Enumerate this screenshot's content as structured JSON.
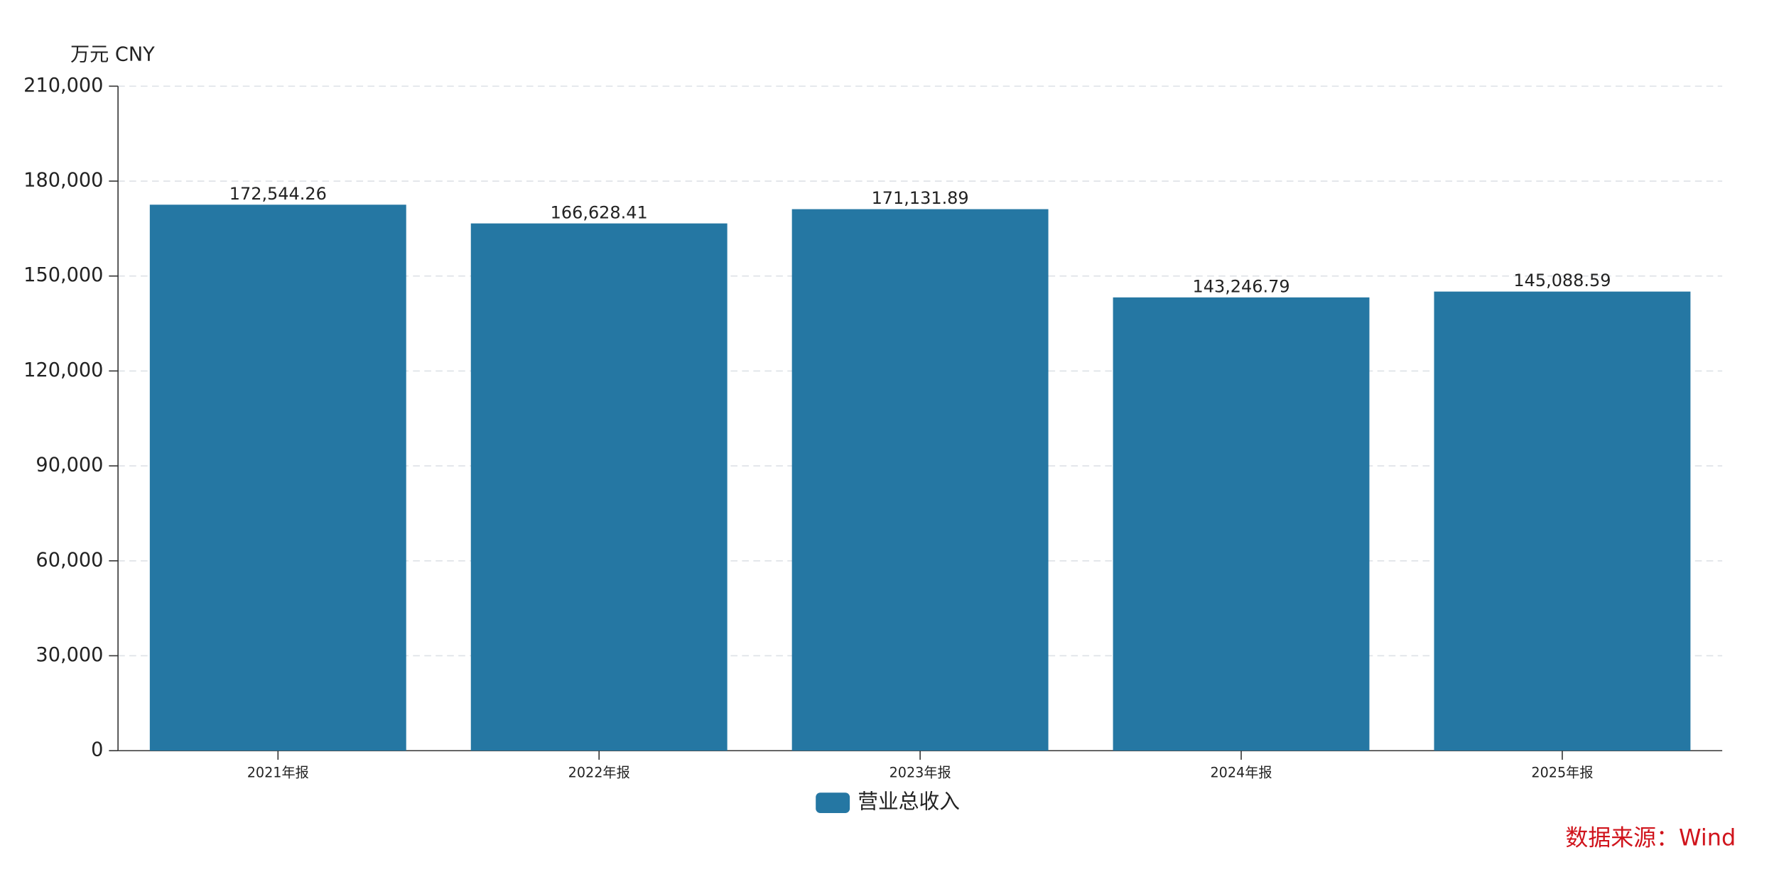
{
  "chart_data": {
    "type": "bar",
    "unit_label": "万元  CNY",
    "categories": [
      "2021年报",
      "2022年报",
      "2023年报",
      "2024年报",
      "2025年报"
    ],
    "series": [
      {
        "name": "营业总收入",
        "color": "#2577a3",
        "values": [
          172544.26,
          166628.41,
          171131.89,
          143246.79,
          145088.59
        ],
        "value_labels": [
          "172,544.26",
          "166,628.41",
          "171,131.89",
          "143,246.79",
          "145,088.59"
        ]
      }
    ],
    "ylim": [
      0,
      210000
    ],
    "yticks": [
      0,
      {
        "value": 30000,
        "label": "30,000"
      },
      {
        "value": 60000,
        "label": "60,000"
      },
      {
        "value": 90000,
        "label": "90,000"
      },
      {
        "value": 120000,
        "label": "120,000"
      },
      {
        "value": 150000,
        "label": "150,000"
      },
      {
        "value": 180000,
        "label": "180,000"
      },
      {
        "value": 210000,
        "label": "210,000"
      }
    ],
    "grid": true,
    "source": "数据来源：Wind"
  }
}
